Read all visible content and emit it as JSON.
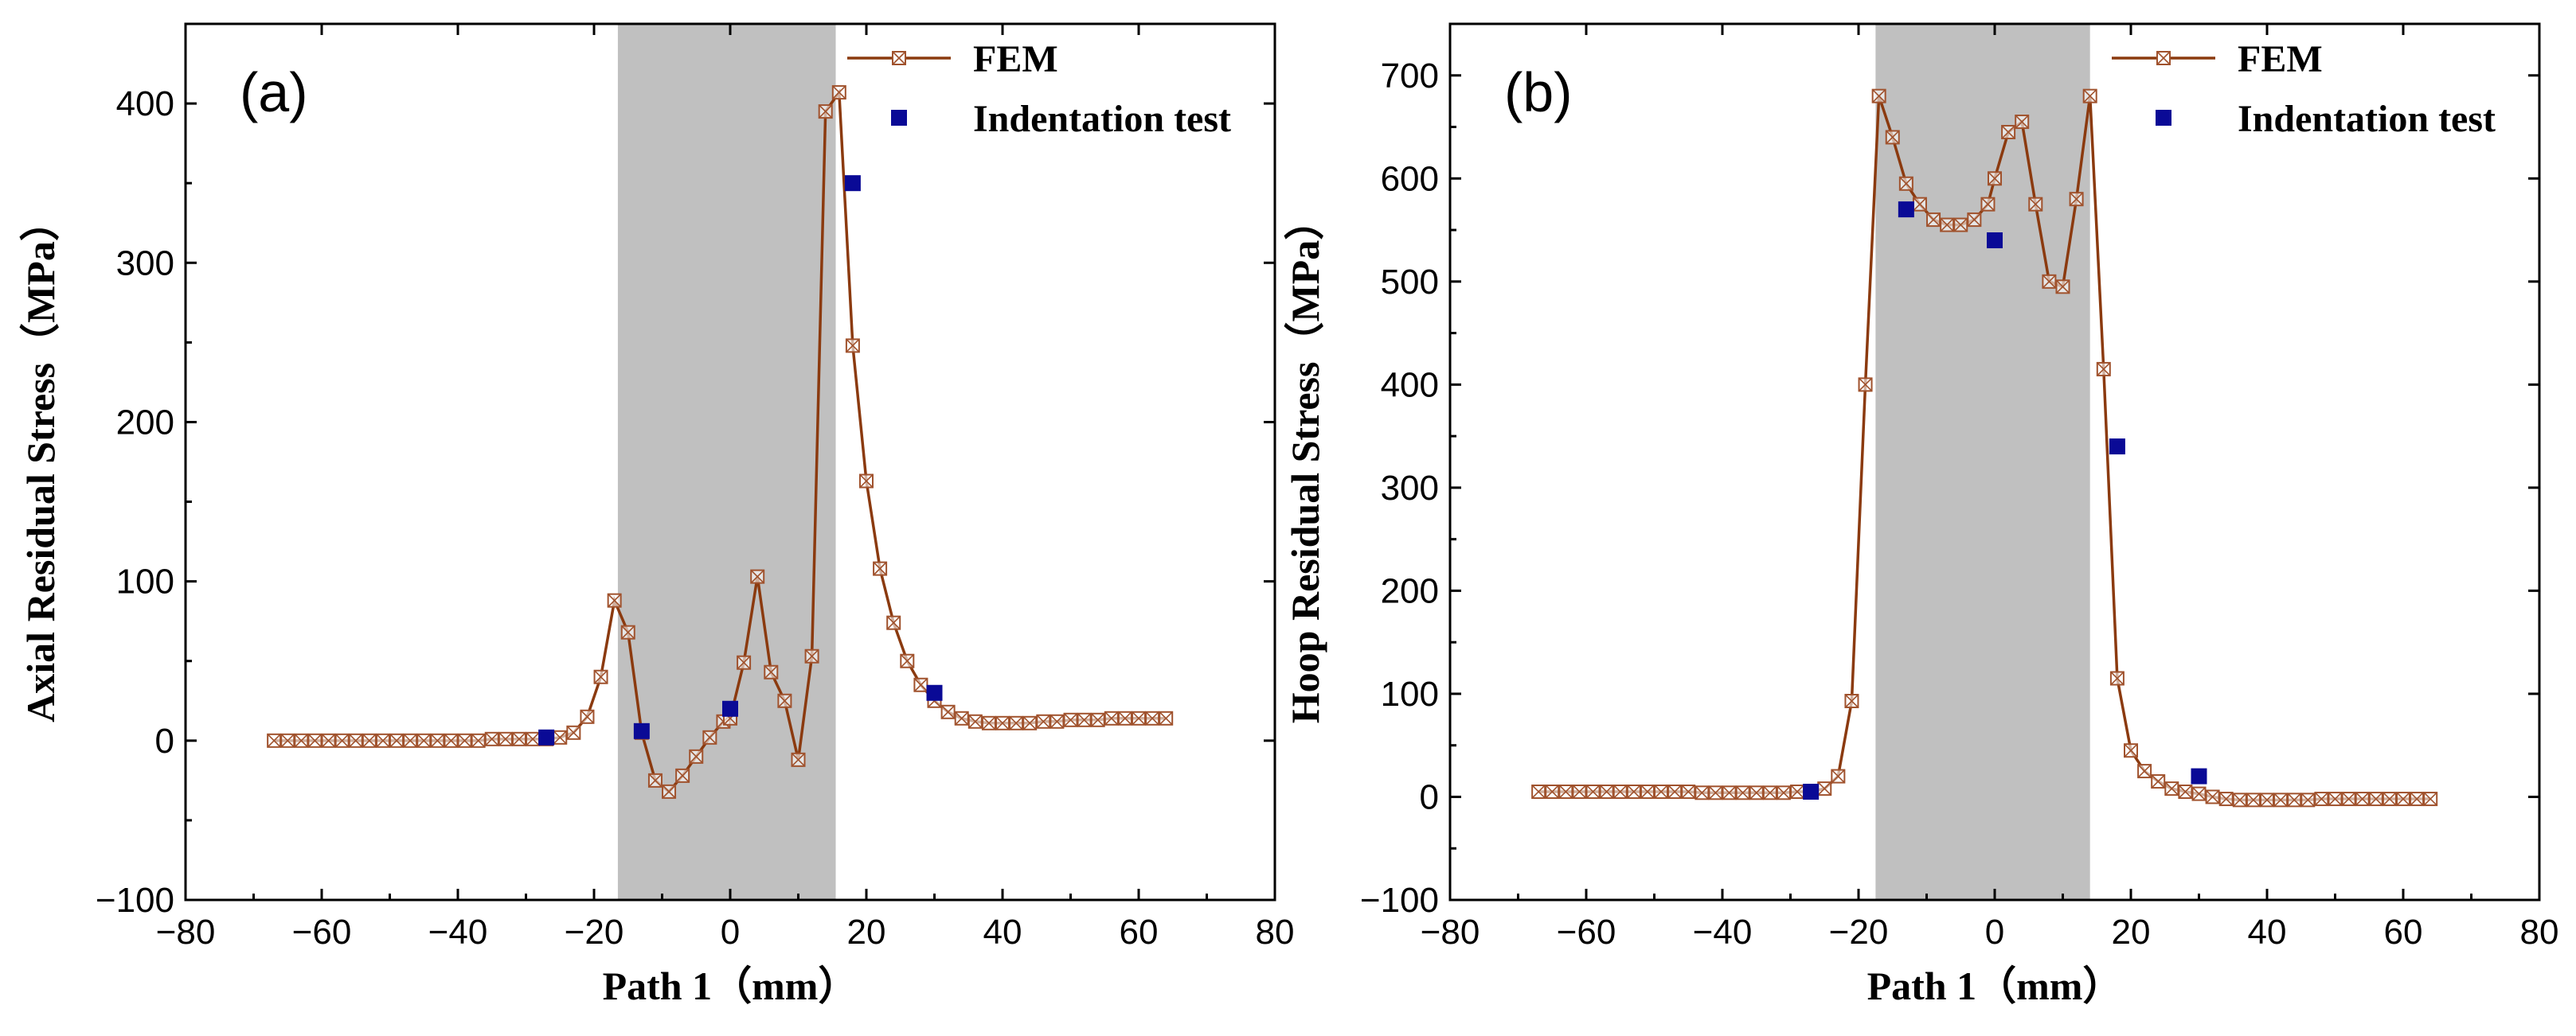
{
  "colors": {
    "line": "#8B3A0F",
    "marker": "#A0522D",
    "indent": "#0A0A96",
    "shade": "#C0C0C0",
    "axis": "#000000"
  },
  "chart_data": [
    {
      "type": "line",
      "panel_label": "(a)",
      "xlabel": "Path 1（mm）",
      "ylabel": "Axial Residual Stress（MPa）",
      "xlim": [
        -80,
        80
      ],
      "ylim": [
        -100,
        450
      ],
      "xticks": [
        -80,
        -60,
        -40,
        -20,
        0,
        20,
        40,
        60,
        80
      ],
      "xtick_labels": [
        "−80",
        "−60",
        "−40",
        "−20",
        "0",
        "20",
        "40",
        "60",
        "80"
      ],
      "yticks": [
        -100,
        0,
        100,
        200,
        300,
        400
      ],
      "ytick_labels": [
        "−100",
        "0",
        "100",
        "200",
        "300",
        "400"
      ],
      "shaded_region": [
        -16.5,
        15.5
      ],
      "legend": [
        "FEM",
        "Indentation test"
      ],
      "series": [
        {
          "name": "FEM",
          "x": [
            -67,
            -65,
            -63,
            -61,
            -59,
            -57,
            -55,
            -53,
            -51,
            -49,
            -47,
            -45,
            -43,
            -41,
            -39,
            -37,
            -35,
            -33,
            -31,
            -29,
            -27,
            -25,
            -23,
            -21,
            -19,
            -17,
            -15,
            -13,
            -11,
            -9,
            -7,
            -5,
            -3,
            -1,
            0,
            2,
            4,
            6,
            8,
            10,
            12,
            14,
            16,
            18,
            20,
            22,
            24,
            26,
            28,
            30,
            32,
            34,
            36,
            38,
            40,
            42,
            44,
            46,
            48,
            50,
            52,
            54,
            56,
            58,
            60,
            62,
            64
          ],
          "y": [
            0,
            0,
            0,
            0,
            0,
            0,
            0,
            0,
            0,
            0,
            0,
            0,
            0,
            0,
            0,
            0,
            1,
            1,
            1,
            1,
            1,
            2,
            5,
            15,
            40,
            88,
            68,
            5,
            -25,
            -32,
            -22,
            -10,
            2,
            12,
            14,
            49,
            103,
            43,
            25,
            -12,
            53,
            395,
            407,
            248,
            163,
            108,
            74,
            50,
            35,
            25,
            18,
            14,
            12,
            11,
            11,
            11,
            11,
            12,
            12,
            13,
            13,
            13,
            14,
            14,
            14,
            14,
            14
          ]
        },
        {
          "name": "Indentation test",
          "x": [
            -27,
            -13,
            0,
            18,
            30
          ],
          "y": [
            2,
            6,
            20,
            350,
            30
          ]
        }
      ]
    },
    {
      "type": "line",
      "panel_label": "(b)",
      "xlabel": "Path 1（mm）",
      "ylabel": "Hoop Residual Stress（MPa）",
      "xlim": [
        -80,
        80
      ],
      "ylim": [
        -100,
        750
      ],
      "xticks": [
        -80,
        -60,
        -40,
        -20,
        0,
        20,
        40,
        60,
        80
      ],
      "xtick_labels": [
        "−80",
        "−60",
        "−40",
        "−20",
        "0",
        "20",
        "40",
        "60",
        "80"
      ],
      "yticks": [
        -100,
        0,
        100,
        200,
        300,
        400,
        500,
        600,
        700
      ],
      "ytick_labels": [
        "−100",
        "0",
        "100",
        "200",
        "300",
        "400",
        "500",
        "600",
        "700"
      ],
      "shaded_region": [
        -17.5,
        14
      ],
      "legend": [
        "FEM",
        "Indentation test"
      ],
      "series": [
        {
          "name": "FEM",
          "x": [
            -67,
            -65,
            -63,
            -61,
            -59,
            -57,
            -55,
            -53,
            -51,
            -49,
            -47,
            -45,
            -43,
            -41,
            -39,
            -37,
            -35,
            -33,
            -31,
            -29,
            -27,
            -25,
            -23,
            -21,
            -19,
            -17,
            -15,
            -13,
            -11,
            -9,
            -7,
            -5,
            -3,
            -1,
            0,
            2,
            4,
            6,
            8,
            10,
            12,
            14,
            16,
            18,
            20,
            22,
            24,
            26,
            28,
            30,
            32,
            34,
            36,
            38,
            40,
            42,
            44,
            46,
            48,
            50,
            52,
            54,
            56,
            58,
            60,
            62,
            64
          ],
          "y": [
            5,
            5,
            5,
            5,
            5,
            5,
            5,
            5,
            5,
            5,
            5,
            5,
            4,
            4,
            4,
            4,
            4,
            4,
            4,
            5,
            5,
            8,
            20,
            93,
            400,
            680,
            640,
            595,
            575,
            560,
            555,
            555,
            560,
            575,
            600,
            645,
            655,
            575,
            500,
            495,
            580,
            680,
            415,
            115,
            45,
            25,
            15,
            8,
            5,
            3,
            0,
            -2,
            -3,
            -3,
            -3,
            -3,
            -3,
            -3,
            -2,
            -2,
            -2,
            -2,
            -2,
            -2,
            -2,
            -2,
            -2
          ]
        },
        {
          "name": "Indentation test",
          "x": [
            -27,
            -13,
            0,
            18,
            30
          ],
          "y": [
            5,
            570,
            540,
            340,
            20
          ]
        }
      ]
    }
  ]
}
